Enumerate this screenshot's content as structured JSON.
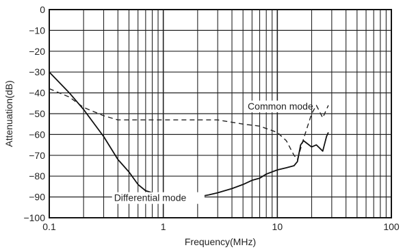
{
  "chart_data": {
    "type": "line",
    "xlabel": "Frequency(MHz)",
    "ylabel": "Attenuation(dB)",
    "x_scale": "log",
    "xlim": [
      0.1,
      100
    ],
    "ylim": [
      -100,
      0
    ],
    "grid": true,
    "x_ticks": [
      0.1,
      1,
      10,
      100
    ],
    "x_tick_labels": [
      "0.1",
      "1",
      "10",
      "100"
    ],
    "y_ticks": [
      0,
      -10,
      -20,
      -30,
      -40,
      -50,
      -60,
      -70,
      -80,
      -90,
      -100
    ],
    "y_tick_labels": [
      "0",
      "−10",
      "−20",
      "−30",
      "−40",
      "−50",
      "−60",
      "−70",
      "−80",
      "−90",
      "−100"
    ],
    "series": [
      {
        "name": "Common mode",
        "style": "dashed",
        "color": "#222222",
        "x": [
          0.1,
          0.15,
          0.2,
          0.3,
          0.4,
          0.5,
          0.7,
          1,
          2,
          3,
          5,
          7,
          10,
          12,
          14,
          15,
          17,
          20,
          22,
          25,
          28
        ],
        "y": [
          -38,
          -42,
          -47,
          -51,
          -53,
          -53,
          -53,
          -53,
          -53,
          -53,
          -55,
          -56,
          -59,
          -63,
          -70,
          -72,
          -62,
          -50,
          -46,
          -52,
          -46
        ]
      },
      {
        "name": "Differential mode",
        "style": "solid",
        "color": "#111111",
        "x": [
          0.1,
          0.15,
          0.2,
          0.3,
          0.4,
          0.5,
          0.6,
          0.7,
          0.8,
          1,
          1.2,
          1.5,
          2,
          2.5,
          3,
          4,
          5,
          6,
          7,
          8,
          10,
          12,
          14,
          15,
          16,
          17,
          20,
          22,
          25,
          27,
          28
        ],
        "y": [
          -30,
          -40,
          -48,
          -61,
          -72,
          -78,
          -84,
          -87,
          -88,
          -89,
          -90,
          -90,
          -90,
          -89,
          -88,
          -86,
          -84,
          -82,
          -81,
          -79,
          -77,
          -76,
          -75,
          -73,
          -65,
          -63,
          -66,
          -65,
          -68,
          -61,
          -59
        ]
      }
    ],
    "annotations": [
      {
        "text": "Common mode",
        "x": 5.5,
        "y": -48
      },
      {
        "text": "Differential mode",
        "x": 0.37,
        "y": -92
      }
    ]
  }
}
